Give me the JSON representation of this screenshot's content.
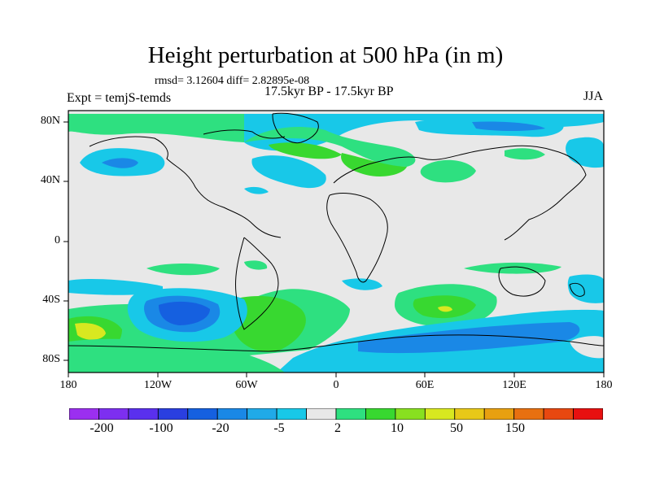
{
  "title": "Height perturbation at 500 hPa (in m)",
  "stats": "rmsd= 3.12604 diff= 2.82895e-08",
  "period": "17.5kyr BP - 17.5kyr BP",
  "experiment": "Expt = temjS-temds",
  "season": "JJA",
  "map": {
    "lat_labels": [
      "80N",
      "40N",
      "0",
      "40S",
      "80S"
    ],
    "lon_labels": [
      "180",
      "120W",
      "60W",
      "0",
      "60E",
      "120E",
      "180"
    ]
  },
  "colorbar": {
    "labels": [
      "-200",
      "-100",
      "-20",
      "-5",
      "2",
      "10",
      "50",
      "150"
    ],
    "colors": [
      "#9b2ff0",
      "#7d2ff0",
      "#5a30ee",
      "#2a3fe0",
      "#1560e0",
      "#1a88e6",
      "#20aae8",
      "#18c8e8",
      "#e8e8e8",
      "#2ee080",
      "#38d830",
      "#88e020",
      "#d8e820",
      "#e8c818",
      "#e8a010",
      "#e87010",
      "#e84810",
      "#e81010"
    ],
    "accent_field_colors": {
      "negative_moderate": "#18c8e8",
      "negative_strong": "#1a88e6",
      "negative_core": "#1560e0",
      "positive_weak": "#2ee080",
      "positive_moderate": "#38d830",
      "positive_core": "#d8e820"
    }
  }
}
